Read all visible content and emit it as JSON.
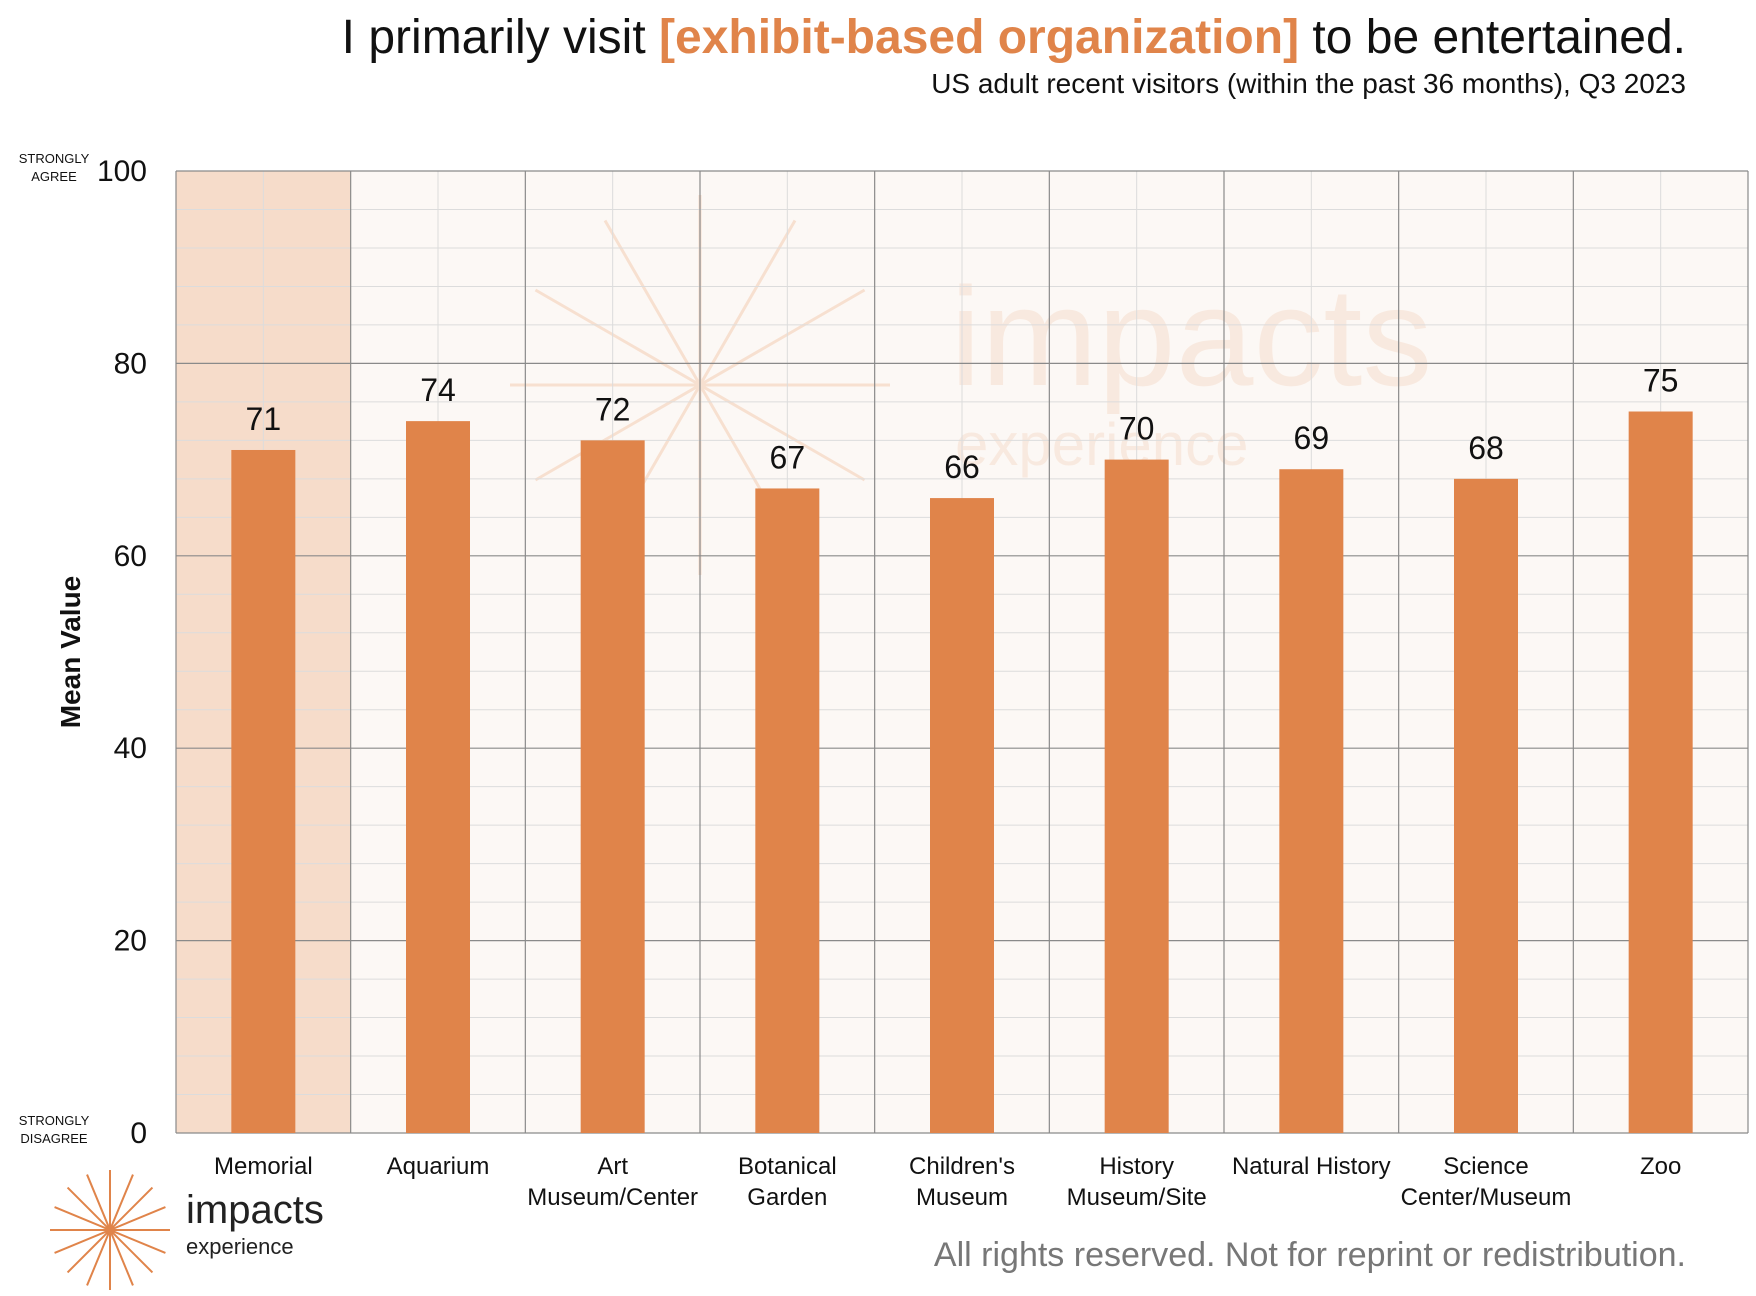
{
  "title": {
    "before": "I primarily visit ",
    "highlight": "[exhibit-based organization]",
    "after": " to be entertained."
  },
  "subtitle": "US adult recent visitors (within the past 36 months), Q3 2023",
  "colors": {
    "bar": "#e0844a",
    "highlight_band": "#f6dcca",
    "plot_bg": "#fcf8f5",
    "title_highlight": "#e0844a"
  },
  "chart_data": {
    "type": "bar",
    "categories": [
      "Memorial",
      "Aquarium",
      "Art\nMuseum/Center",
      "Botanical\nGarden",
      "Children's\nMuseum",
      "History\nMuseum/Site",
      "Natural History",
      "Science\nCenter/Museum",
      "Zoo"
    ],
    "values": [
      71,
      74,
      72,
      67,
      66,
      70,
      69,
      68,
      75
    ],
    "ylabel": "Mean Value",
    "ylim": [
      0,
      100
    ],
    "yticks": [
      0,
      20,
      40,
      60,
      80,
      100
    ],
    "y_anchor_top": "STRONGLY\nAGREE",
    "y_anchor_bottom": "STRONGLY\nDISAGREE",
    "highlighted_category": "Memorial",
    "grid": true,
    "data_labels": true
  },
  "watermark": {
    "word": "impacts",
    "sub": "experience"
  },
  "logo": {
    "word": "impacts",
    "sub": "experience",
    "icon": "starburst-icon"
  },
  "footer": "All rights reserved. Not for reprint or redistribution."
}
